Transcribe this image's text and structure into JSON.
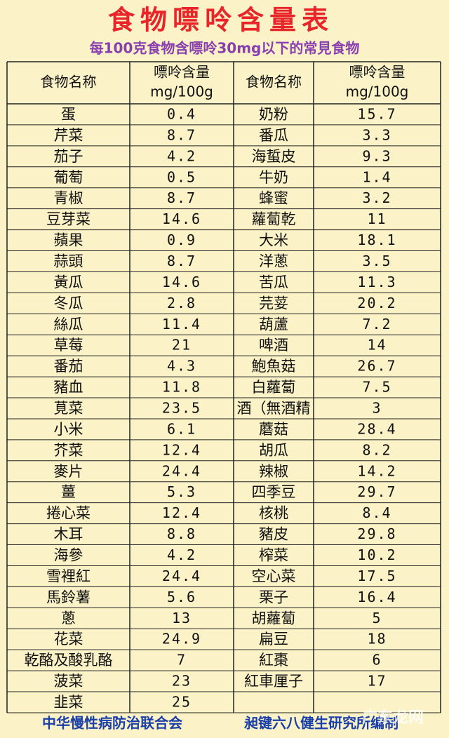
{
  "header": {
    "title": "食物嘌呤含量表",
    "subtitle": "每100克食物含嘌呤30mg以下的常見食物"
  },
  "table": {
    "header": [
      [
        "食物名称"
      ],
      [
        "嘌呤含量",
        "mg/100g"
      ],
      [
        "食物名称"
      ],
      [
        "嘌呤含量",
        "mg/100g"
      ]
    ],
    "rows": [
      [
        "蛋",
        0.4,
        "奶粉",
        15.7
      ],
      [
        "芹菜",
        8.7,
        "番瓜",
        3.3
      ],
      [
        "茄子",
        4.2,
        "海蜇皮",
        9.3
      ],
      [
        "葡萄",
        0.5,
        "牛奶",
        1.4
      ],
      [
        "青椒",
        8.7,
        "蜂蜜",
        3.2
      ],
      [
        "豆芽菜",
        14.6,
        "蘿蔔乾",
        11
      ],
      [
        "蘋果",
        0.9,
        "大米",
        18.1
      ],
      [
        "蒜頭",
        8.7,
        "洋蔥",
        3.5
      ],
      [
        "黃瓜",
        14.6,
        "苦瓜",
        11.3
      ],
      [
        "冬瓜",
        2.8,
        "芫荽",
        20.2
      ],
      [
        "絲瓜",
        11.4,
        "葫蘆",
        7.2
      ],
      [
        "草莓",
        21,
        "啤酒",
        14
      ],
      [
        "番茄",
        4.3,
        "鮑魚菇",
        26.7
      ],
      [
        "豬血",
        11.8,
        "白蘿蔔",
        7.5
      ],
      [
        "莧菜",
        23.5,
        "酒（無酒精",
        3
      ],
      [
        "小米",
        6.1,
        "蘑菇",
        28.4
      ],
      [
        "芥菜",
        12.4,
        "胡瓜",
        8.2
      ],
      [
        "麥片",
        24.4,
        "辣椒",
        14.2
      ],
      [
        "薑",
        5.3,
        "四季豆",
        29.7
      ],
      [
        "捲心菜",
        12.4,
        "核桃",
        8.4
      ],
      [
        "木耳",
        8.8,
        "豬皮",
        29.8
      ],
      [
        "海參",
        4.2,
        "榨菜",
        10.2
      ],
      [
        "雪裡紅",
        24.4,
        "空心菜",
        17.5
      ],
      [
        "馬鈴薯",
        5.6,
        "栗子",
        16.4
      ],
      [
        "蔥",
        13,
        "胡蘿蔔",
        5
      ],
      [
        "花菜",
        24.9,
        "扁豆",
        18
      ],
      [
        "乾酪及酸乳酪",
        7,
        "紅棗",
        6
      ],
      [
        "菠菜",
        23,
        "紅車厘子",
        17
      ],
      [
        "韭菜",
        25,
        null,
        null
      ]
    ]
  },
  "footer": {
    "left": "中华慢性病防治联合会",
    "right": "昶键六八健生研究所编制",
    "watermark": "广东龙网"
  }
}
